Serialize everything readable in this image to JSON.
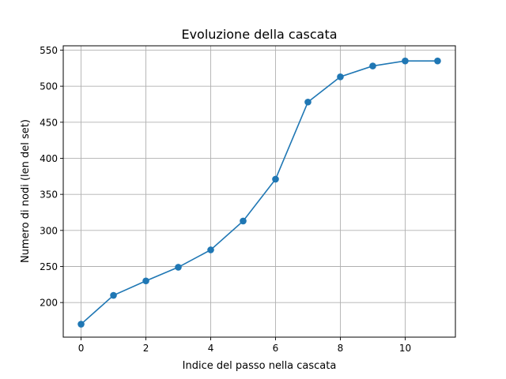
{
  "chart_data": {
    "type": "line",
    "title": "Evoluzione della cascata",
    "xlabel": "Indice del passo nella cascata",
    "ylabel": "Numero di nodi (len del set)",
    "x": [
      0,
      1,
      2,
      3,
      4,
      5,
      6,
      7,
      8,
      9,
      10,
      11
    ],
    "series": [
      {
        "values": [
          170,
          210,
          230,
          249,
          273,
          313,
          371,
          478,
          513,
          528,
          535,
          535
        ]
      }
    ],
    "xlim": [
      -0.55,
      11.55
    ],
    "ylim": [
      152,
      556
    ],
    "xticks": [
      0,
      2,
      4,
      6,
      8,
      10
    ],
    "yticks": [
      200,
      250,
      300,
      350,
      400,
      450,
      500,
      550
    ],
    "grid": true,
    "markers": true,
    "colors": {
      "line": "#1f77b4"
    }
  }
}
